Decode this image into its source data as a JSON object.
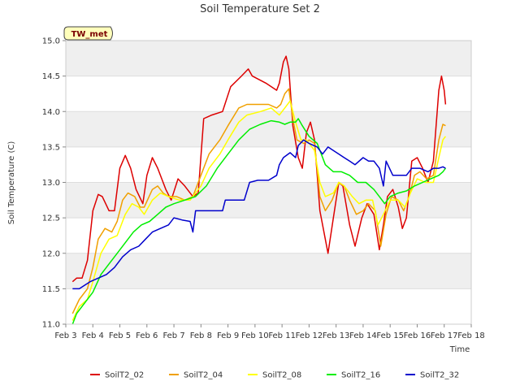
{
  "chart_data": {
    "type": "line",
    "title": "Soil Temperature Set 2",
    "xlabel": "Time",
    "ylabel": "Soil Temperature (C)",
    "badge": "TW_met",
    "xlim": [
      3,
      18
    ],
    "ylim": [
      11.0,
      15.0
    ],
    "x_ticks": [
      3,
      4,
      5,
      6,
      7,
      8,
      9,
      10,
      11,
      12,
      13,
      14,
      15,
      16,
      17,
      18
    ],
    "x_tick_labels": [
      "Feb 3",
      "Feb 4",
      "Feb 5",
      "Feb 6",
      "Feb 7",
      "Feb 8",
      "Feb 9",
      "Feb 10",
      "Feb 11",
      "Feb 12",
      "Feb 13",
      "Feb 14",
      "Feb 15",
      "Feb 16",
      "Feb 17",
      "Feb 18"
    ],
    "y_ticks": [
      11.0,
      11.5,
      12.0,
      12.5,
      13.0,
      13.5,
      14.0,
      14.5,
      15.0
    ],
    "y_tick_labels": [
      "11.0",
      "11.5",
      "12.0",
      "12.5",
      "13.0",
      "13.5",
      "14.0",
      "14.5",
      "15.0"
    ],
    "legend_position": "bottom",
    "series": [
      {
        "name": "SoilT2_02",
        "color": "#dd0000",
        "points": [
          [
            3.25,
            11.6
          ],
          [
            3.4,
            11.65
          ],
          [
            3.6,
            11.65
          ],
          [
            3.8,
            11.9
          ],
          [
            4.0,
            12.6
          ],
          [
            4.2,
            12.83
          ],
          [
            4.35,
            12.8
          ],
          [
            4.6,
            12.6
          ],
          [
            4.8,
            12.6
          ],
          [
            5.0,
            13.2
          ],
          [
            5.2,
            13.38
          ],
          [
            5.4,
            13.2
          ],
          [
            5.6,
            12.9
          ],
          [
            5.85,
            12.7
          ],
          [
            6.0,
            13.1
          ],
          [
            6.2,
            13.35
          ],
          [
            6.4,
            13.2
          ],
          [
            6.7,
            12.9
          ],
          [
            6.9,
            12.75
          ],
          [
            7.15,
            13.05
          ],
          [
            7.4,
            12.95
          ],
          [
            7.7,
            12.8
          ],
          [
            7.9,
            12.85
          ],
          [
            8.1,
            13.9
          ],
          [
            8.4,
            13.95
          ],
          [
            8.8,
            14.0
          ],
          [
            9.1,
            14.35
          ],
          [
            9.5,
            14.5
          ],
          [
            9.75,
            14.6
          ],
          [
            9.9,
            14.5
          ],
          [
            10.4,
            14.4
          ],
          [
            10.8,
            14.3
          ],
          [
            10.9,
            14.4
          ],
          [
            11.05,
            14.7
          ],
          [
            11.15,
            14.78
          ],
          [
            11.25,
            14.6
          ],
          [
            11.4,
            13.8
          ],
          [
            11.6,
            13.35
          ],
          [
            11.75,
            13.2
          ],
          [
            11.9,
            13.7
          ],
          [
            12.05,
            13.85
          ],
          [
            12.2,
            13.6
          ],
          [
            12.4,
            12.6
          ],
          [
            12.7,
            12.0
          ],
          [
            12.9,
            12.5
          ],
          [
            13.1,
            13.0
          ],
          [
            13.25,
            12.95
          ],
          [
            13.5,
            12.4
          ],
          [
            13.7,
            12.1
          ],
          [
            13.95,
            12.5
          ],
          [
            14.15,
            12.7
          ],
          [
            14.4,
            12.55
          ],
          [
            14.6,
            12.05
          ],
          [
            14.75,
            12.4
          ],
          [
            14.9,
            12.8
          ],
          [
            15.1,
            12.9
          ],
          [
            15.3,
            12.65
          ],
          [
            15.45,
            12.35
          ],
          [
            15.6,
            12.5
          ],
          [
            15.8,
            13.3
          ],
          [
            16.0,
            13.35
          ],
          [
            16.2,
            13.2
          ],
          [
            16.4,
            13.0
          ],
          [
            16.6,
            13.3
          ],
          [
            16.8,
            14.3
          ],
          [
            16.9,
            14.5
          ],
          [
            17.0,
            14.3
          ],
          [
            17.05,
            14.1
          ]
        ]
      },
      {
        "name": "SoilT2_04",
        "color": "#f0a000",
        "points": [
          [
            3.25,
            11.15
          ],
          [
            3.5,
            11.35
          ],
          [
            3.8,
            11.5
          ],
          [
            4.0,
            11.8
          ],
          [
            4.2,
            12.2
          ],
          [
            4.45,
            12.35
          ],
          [
            4.7,
            12.3
          ],
          [
            4.9,
            12.45
          ],
          [
            5.1,
            12.75
          ],
          [
            5.3,
            12.85
          ],
          [
            5.55,
            12.8
          ],
          [
            5.75,
            12.65
          ],
          [
            5.9,
            12.65
          ],
          [
            6.2,
            12.9
          ],
          [
            6.4,
            12.95
          ],
          [
            6.6,
            12.85
          ],
          [
            6.8,
            12.8
          ],
          [
            7.1,
            12.8
          ],
          [
            7.4,
            12.75
          ],
          [
            7.7,
            12.8
          ],
          [
            8.0,
            13.1
          ],
          [
            8.3,
            13.4
          ],
          [
            8.7,
            13.6
          ],
          [
            9.0,
            13.8
          ],
          [
            9.4,
            14.05
          ],
          [
            9.7,
            14.1
          ],
          [
            10.0,
            14.1
          ],
          [
            10.5,
            14.1
          ],
          [
            10.8,
            14.05
          ],
          [
            10.95,
            14.1
          ],
          [
            11.1,
            14.25
          ],
          [
            11.25,
            14.32
          ],
          [
            11.4,
            13.9
          ],
          [
            11.55,
            13.6
          ],
          [
            11.8,
            13.55
          ],
          [
            12.0,
            13.6
          ],
          [
            12.2,
            13.55
          ],
          [
            12.4,
            12.8
          ],
          [
            12.6,
            12.6
          ],
          [
            12.85,
            12.75
          ],
          [
            13.1,
            13.0
          ],
          [
            13.3,
            12.95
          ],
          [
            13.5,
            12.75
          ],
          [
            13.75,
            12.55
          ],
          [
            14.0,
            12.6
          ],
          [
            14.2,
            12.7
          ],
          [
            14.45,
            12.6
          ],
          [
            14.65,
            12.1
          ],
          [
            14.85,
            12.55
          ],
          [
            15.05,
            12.8
          ],
          [
            15.3,
            12.75
          ],
          [
            15.5,
            12.6
          ],
          [
            15.7,
            12.8
          ],
          [
            15.9,
            13.1
          ],
          [
            16.1,
            13.15
          ],
          [
            16.35,
            13.05
          ],
          [
            16.6,
            13.1
          ],
          [
            16.8,
            13.6
          ],
          [
            16.95,
            13.82
          ],
          [
            17.05,
            13.8
          ]
        ]
      },
      {
        "name": "SoilT2_08",
        "color": "#ffff00",
        "points": [
          [
            3.25,
            11.05
          ],
          [
            3.5,
            11.25
          ],
          [
            3.8,
            11.35
          ],
          [
            4.0,
            11.6
          ],
          [
            4.3,
            12.0
          ],
          [
            4.6,
            12.2
          ],
          [
            4.9,
            12.25
          ],
          [
            5.2,
            12.55
          ],
          [
            5.45,
            12.7
          ],
          [
            5.7,
            12.65
          ],
          [
            5.9,
            12.55
          ],
          [
            6.2,
            12.75
          ],
          [
            6.5,
            12.85
          ],
          [
            6.8,
            12.8
          ],
          [
            7.2,
            12.75
          ],
          [
            7.6,
            12.75
          ],
          [
            8.0,
            12.95
          ],
          [
            8.3,
            13.2
          ],
          [
            8.7,
            13.4
          ],
          [
            9.0,
            13.6
          ],
          [
            9.4,
            13.85
          ],
          [
            9.7,
            13.95
          ],
          [
            10.2,
            14.0
          ],
          [
            10.6,
            14.05
          ],
          [
            10.9,
            13.95
          ],
          [
            11.1,
            14.05
          ],
          [
            11.3,
            14.15
          ],
          [
            11.5,
            13.85
          ],
          [
            11.7,
            13.6
          ],
          [
            11.9,
            13.6
          ],
          [
            12.2,
            13.45
          ],
          [
            12.4,
            13.0
          ],
          [
            12.6,
            12.8
          ],
          [
            12.9,
            12.85
          ],
          [
            13.1,
            13.0
          ],
          [
            13.3,
            12.95
          ],
          [
            13.6,
            12.8
          ],
          [
            13.85,
            12.7
          ],
          [
            14.1,
            12.75
          ],
          [
            14.35,
            12.75
          ],
          [
            14.55,
            12.4
          ],
          [
            14.75,
            12.55
          ],
          [
            15.0,
            12.75
          ],
          [
            15.3,
            12.75
          ],
          [
            15.55,
            12.65
          ],
          [
            15.75,
            12.85
          ],
          [
            16.0,
            13.05
          ],
          [
            16.3,
            13.0
          ],
          [
            16.6,
            13.0
          ],
          [
            16.8,
            13.35
          ],
          [
            16.95,
            13.6
          ],
          [
            17.05,
            13.65
          ]
        ]
      },
      {
        "name": "SoilT2_16",
        "color": "#00ee00",
        "points": [
          [
            3.25,
            11.0
          ],
          [
            3.4,
            11.15
          ],
          [
            3.7,
            11.3
          ],
          [
            4.0,
            11.45
          ],
          [
            4.3,
            11.7
          ],
          [
            4.6,
            11.85
          ],
          [
            4.9,
            12.0
          ],
          [
            5.2,
            12.15
          ],
          [
            5.5,
            12.3
          ],
          [
            5.8,
            12.4
          ],
          [
            6.1,
            12.45
          ],
          [
            6.4,
            12.55
          ],
          [
            6.7,
            12.65
          ],
          [
            7.0,
            12.7
          ],
          [
            7.4,
            12.75
          ],
          [
            7.8,
            12.8
          ],
          [
            8.2,
            12.95
          ],
          [
            8.6,
            13.2
          ],
          [
            9.0,
            13.4
          ],
          [
            9.4,
            13.6
          ],
          [
            9.8,
            13.75
          ],
          [
            10.2,
            13.82
          ],
          [
            10.6,
            13.87
          ],
          [
            10.9,
            13.85
          ],
          [
            11.1,
            13.82
          ],
          [
            11.3,
            13.85
          ],
          [
            11.5,
            13.85
          ],
          [
            11.6,
            13.9
          ],
          [
            11.75,
            13.8
          ],
          [
            12.0,
            13.65
          ],
          [
            12.3,
            13.55
          ],
          [
            12.6,
            13.25
          ],
          [
            12.9,
            13.15
          ],
          [
            13.2,
            13.15
          ],
          [
            13.5,
            13.1
          ],
          [
            13.8,
            13.0
          ],
          [
            14.1,
            13.0
          ],
          [
            14.4,
            12.9
          ],
          [
            14.6,
            12.8
          ],
          [
            14.8,
            12.7
          ],
          [
            15.0,
            12.8
          ],
          [
            15.3,
            12.85
          ],
          [
            15.6,
            12.88
          ],
          [
            15.9,
            12.95
          ],
          [
            16.2,
            13.0
          ],
          [
            16.5,
            13.05
          ],
          [
            16.8,
            13.1
          ],
          [
            16.95,
            13.15
          ],
          [
            17.05,
            13.2
          ]
        ]
      },
      {
        "name": "SoilT2_32",
        "color": "#0000cc",
        "points": [
          [
            3.25,
            11.5
          ],
          [
            3.5,
            11.5
          ],
          [
            3.7,
            11.55
          ],
          [
            3.9,
            11.6
          ],
          [
            4.2,
            11.65
          ],
          [
            4.5,
            11.7
          ],
          [
            4.8,
            11.8
          ],
          [
            5.1,
            11.95
          ],
          [
            5.4,
            12.05
          ],
          [
            5.7,
            12.1
          ],
          [
            5.95,
            12.2
          ],
          [
            6.2,
            12.3
          ],
          [
            6.5,
            12.35
          ],
          [
            6.8,
            12.4
          ],
          [
            7.0,
            12.5
          ],
          [
            7.3,
            12.47
          ],
          [
            7.6,
            12.45
          ],
          [
            7.7,
            12.3
          ],
          [
            7.8,
            12.6
          ],
          [
            8.2,
            12.6
          ],
          [
            8.5,
            12.6
          ],
          [
            8.8,
            12.6
          ],
          [
            8.9,
            12.75
          ],
          [
            9.2,
            12.75
          ],
          [
            9.6,
            12.75
          ],
          [
            9.8,
            13.0
          ],
          [
            10.1,
            13.03
          ],
          [
            10.5,
            13.03
          ],
          [
            10.8,
            13.1
          ],
          [
            10.9,
            13.25
          ],
          [
            11.05,
            13.35
          ],
          [
            11.3,
            13.42
          ],
          [
            11.5,
            13.35
          ],
          [
            11.6,
            13.52
          ],
          [
            11.8,
            13.6
          ],
          [
            12.0,
            13.55
          ],
          [
            12.3,
            13.5
          ],
          [
            12.5,
            13.4
          ],
          [
            12.7,
            13.5
          ],
          [
            12.9,
            13.45
          ],
          [
            13.1,
            13.4
          ],
          [
            13.3,
            13.35
          ],
          [
            13.5,
            13.3
          ],
          [
            13.7,
            13.25
          ],
          [
            14.0,
            13.35
          ],
          [
            14.2,
            13.3
          ],
          [
            14.4,
            13.3
          ],
          [
            14.6,
            13.2
          ],
          [
            14.75,
            12.95
          ],
          [
            14.85,
            13.3
          ],
          [
            15.1,
            13.1
          ],
          [
            15.4,
            13.1
          ],
          [
            15.6,
            13.1
          ],
          [
            15.8,
            13.2
          ],
          [
            16.1,
            13.2
          ],
          [
            16.4,
            13.15
          ],
          [
            16.6,
            13.2
          ],
          [
            16.8,
            13.2
          ],
          [
            16.95,
            13.22
          ],
          [
            17.05,
            13.2
          ]
        ]
      }
    ]
  }
}
